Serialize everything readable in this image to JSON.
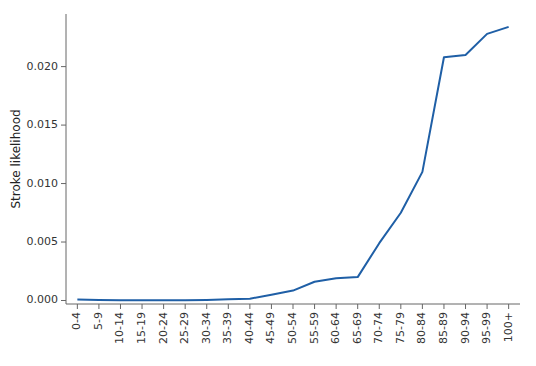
{
  "chart_data": {
    "type": "line",
    "categories": [
      "0-4",
      "5-9",
      "10-14",
      "15-19",
      "20-24",
      "25-29",
      "30-34",
      "35-39",
      "40-44",
      "45-49",
      "50-54",
      "55-59",
      "60-64",
      "65-69",
      "70-74",
      "75-79",
      "80-84",
      "85-89",
      "90-94",
      "95-99",
      "100+"
    ],
    "values": [
      8e-05,
      5e-05,
      3e-05,
      3e-05,
      3e-05,
      3e-05,
      5e-05,
      0.0001,
      0.00015,
      0.0005,
      0.00085,
      0.0016,
      0.0019,
      0.002,
      0.0049,
      0.0075,
      0.011,
      0.0208,
      0.021,
      0.0228,
      0.0234
    ],
    "ylabel": "Stroke likelihood",
    "color": "#1f5fa6",
    "ylim": [
      -0.0003,
      0.0245
    ],
    "yticks": [
      {
        "value": 0,
        "label": "0.000"
      },
      0.005,
      {
        "value": 0.01,
        "label": "0.010"
      },
      0.015,
      {
        "value": 0.02,
        "label": "0.020"
      }
    ],
    "grid": false
  }
}
